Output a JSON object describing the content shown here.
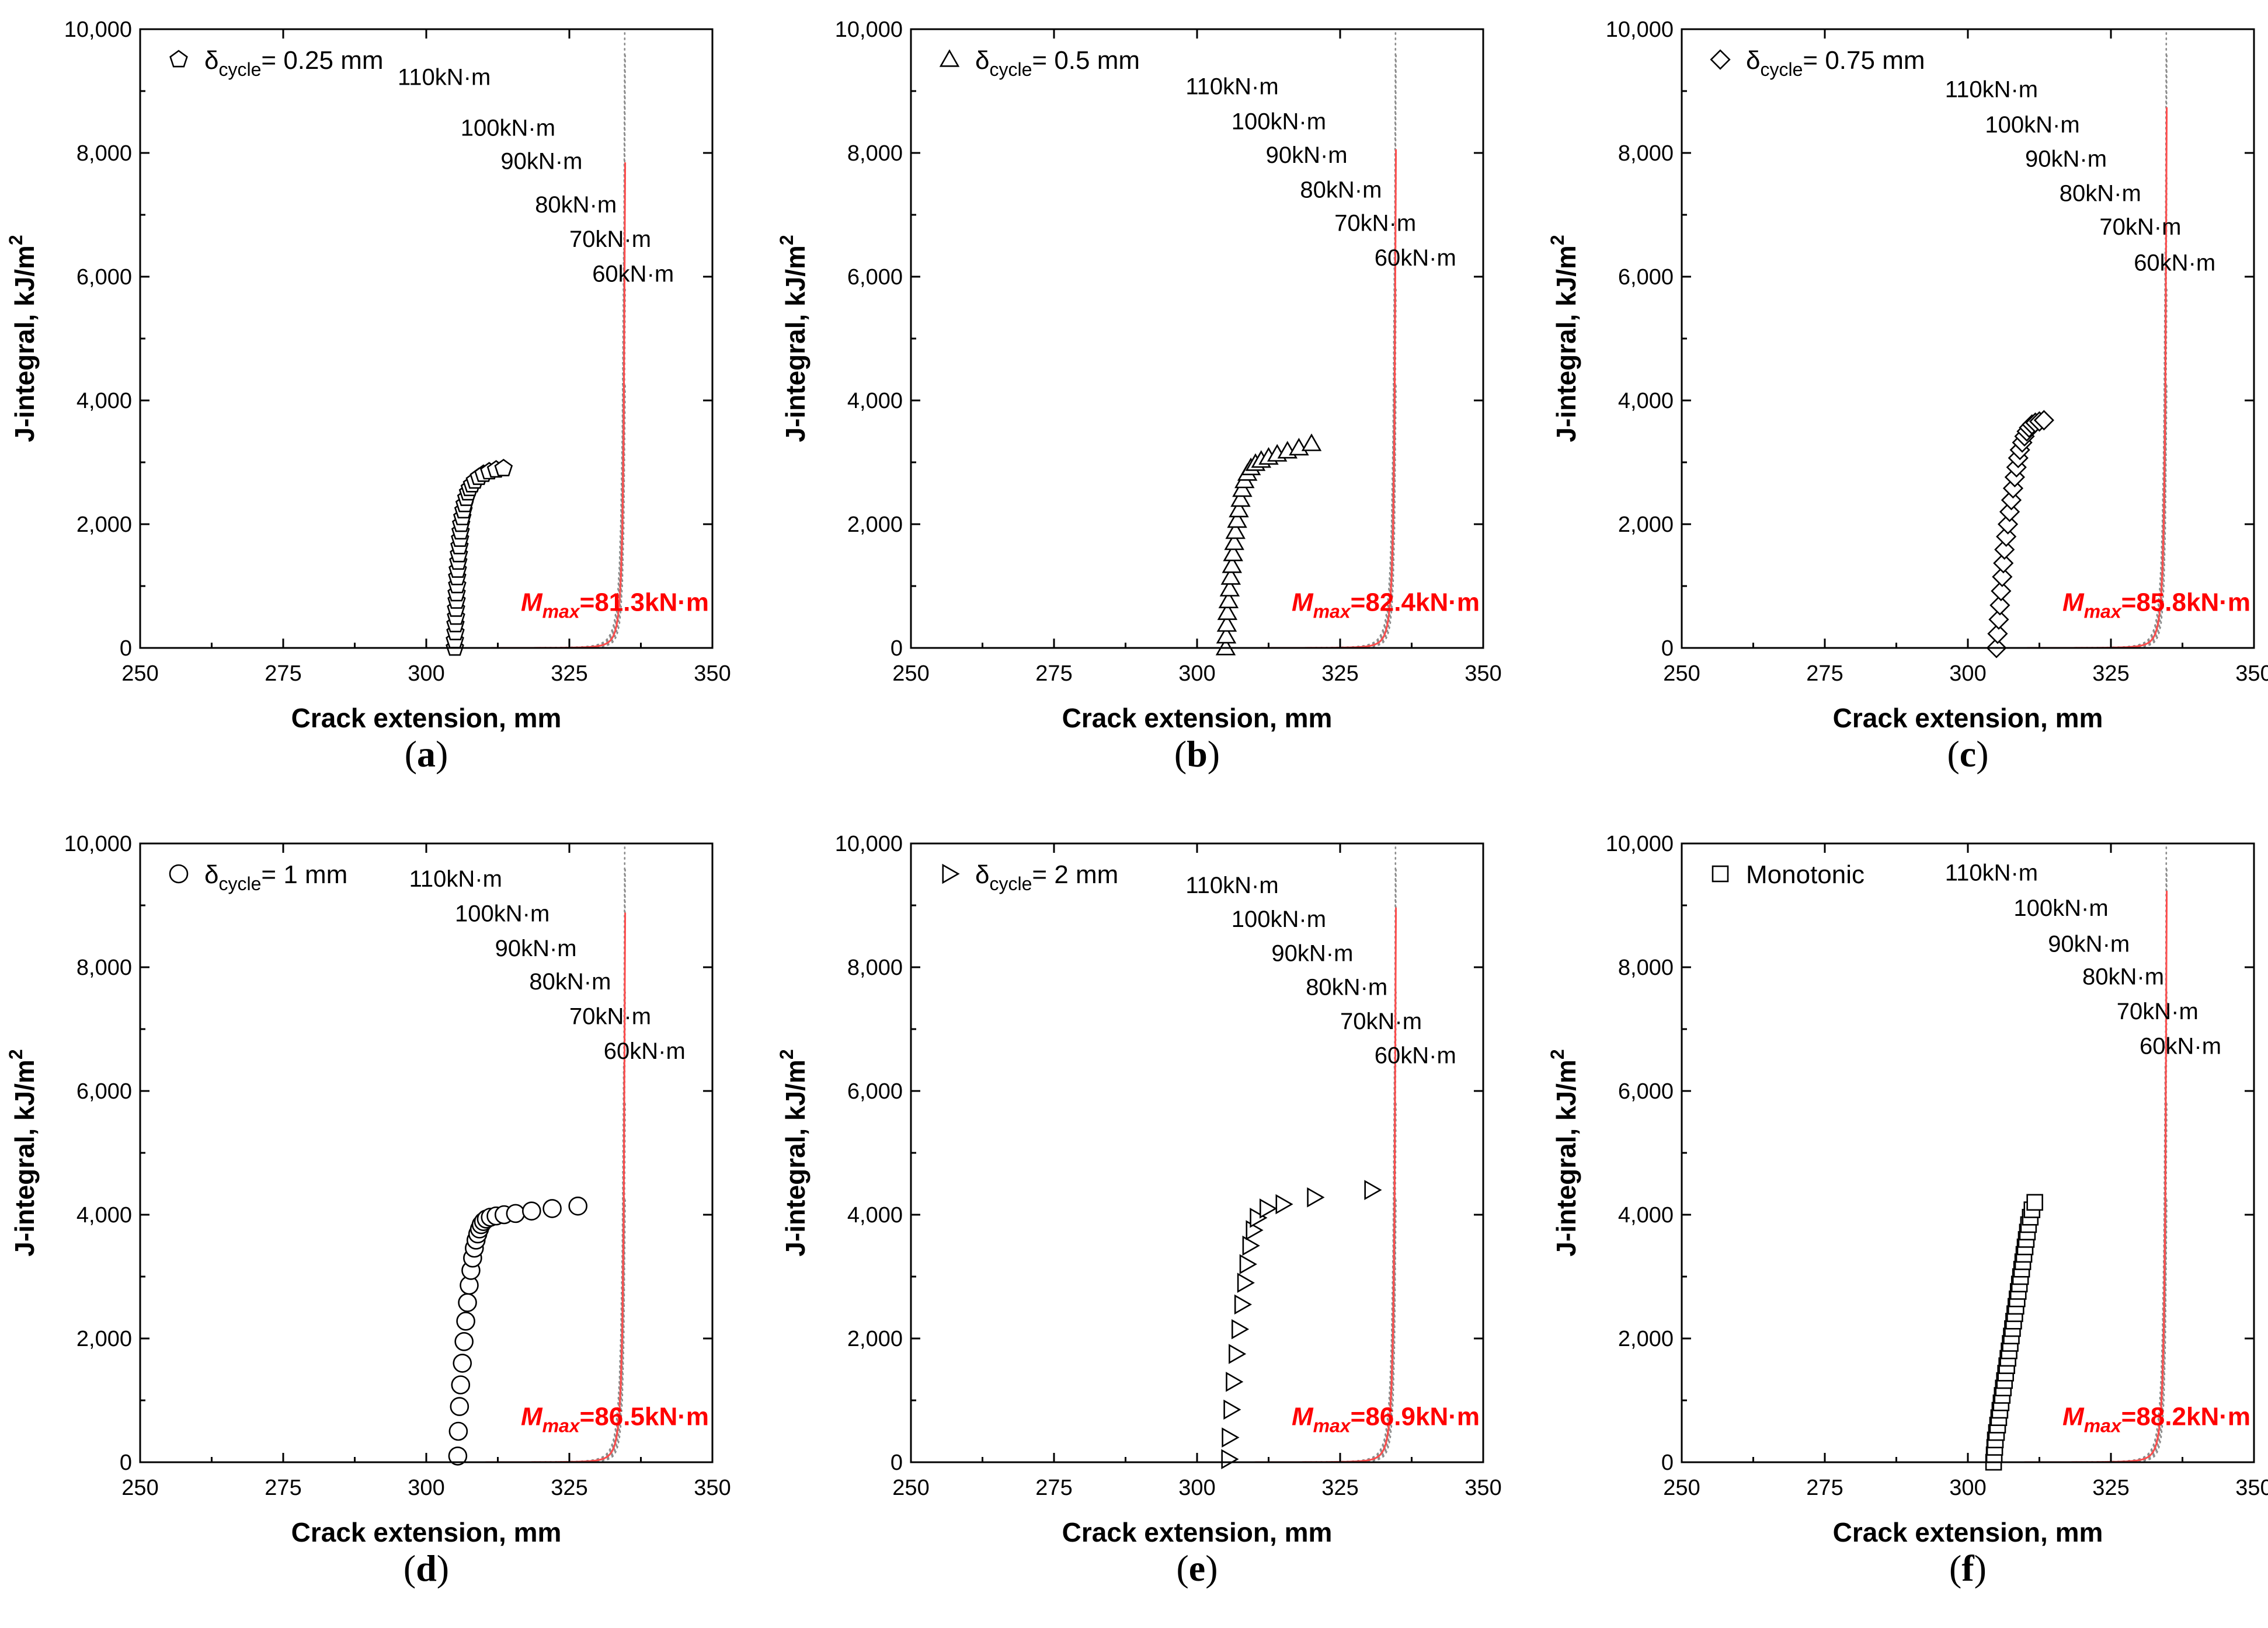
{
  "chart_data": [
    {
      "type": "scatter",
      "panel_label": "a",
      "xlabel": "Crack extension, mm",
      "ylabel_main": "J-integral, kJ/m",
      "ylabel_sup": "2",
      "xlim": [
        250,
        350
      ],
      "ylim": [
        0,
        10000
      ],
      "xticks": [
        "250",
        "275",
        "300",
        "325",
        "350"
      ],
      "yticks": [
        "0",
        "2,000",
        "4,000",
        "6,000",
        "8,000",
        "10,000"
      ],
      "legend": {
        "pre": "δ",
        "sub": "cycle",
        "post": "= 0.25 mm",
        "marker": "pentagon"
      },
      "moment_curves": [
        {
          "label": "110kN·m",
          "moment": 110,
          "label_at": [
            295,
            9100
          ]
        },
        {
          "label": "100kN·m",
          "moment": 100,
          "label_at": [
            306,
            8280
          ]
        },
        {
          "label": "90kN·m",
          "moment": 90,
          "label_at": [
            313,
            7740
          ]
        },
        {
          "label": "80kN·m",
          "moment": 80,
          "label_at": [
            319,
            7040
          ]
        },
        {
          "label": "70kN·m",
          "moment": 70,
          "label_at": [
            325,
            6480
          ]
        },
        {
          "label": "60kN·m",
          "moment": 60,
          "label_at": [
            329,
            5920
          ]
        }
      ],
      "mmax": {
        "symbol": "M",
        "sub": "max",
        "value": "=81.3kN·m",
        "moment": 81.3
      },
      "points": {
        "x": [
          305.0,
          305.0,
          305.1,
          305.1,
          305.2,
          305.2,
          305.3,
          305.3,
          305.4,
          305.4,
          305.5,
          305.6,
          305.7,
          305.8,
          305.9,
          306.0,
          306.1,
          306.3,
          306.5,
          306.7,
          307.0,
          307.3,
          307.6,
          308.0,
          308.5,
          309.2,
          310.0,
          311.0,
          312.2,
          313.5
        ],
        "y": [
          0,
          120,
          250,
          380,
          500,
          630,
          760,
          880,
          1010,
          1140,
          1260,
          1390,
          1510,
          1640,
          1760,
          1880,
          2000,
          2110,
          2220,
          2320,
          2420,
          2510,
          2580,
          2640,
          2700,
          2760,
          2810,
          2850,
          2880,
          2900
        ]
      }
    },
    {
      "type": "scatter",
      "panel_label": "b",
      "xlabel": "Crack extension, mm",
      "ylabel_main": "J-integral, kJ/m",
      "ylabel_sup": "2",
      "xlim": [
        250,
        350
      ],
      "ylim": [
        0,
        10000
      ],
      "xticks": [
        "250",
        "275",
        "300",
        "325",
        "350"
      ],
      "yticks": [
        "0",
        "2,000",
        "4,000",
        "6,000",
        "8,000",
        "10,000"
      ],
      "legend": {
        "pre": "δ",
        "sub": "cycle",
        "post": "= 0.5 mm",
        "marker": "triangle-up"
      },
      "moment_curves": [
        {
          "label": "110kN·m",
          "moment": 110,
          "label_at": [
            298,
            8950
          ]
        },
        {
          "label": "100kN·m",
          "moment": 100,
          "label_at": [
            306,
            8380
          ]
        },
        {
          "label": "90kN·m",
          "moment": 90,
          "label_at": [
            312,
            7840
          ]
        },
        {
          "label": "80kN·m",
          "moment": 80,
          "label_at": [
            318,
            7280
          ]
        },
        {
          "label": "70kN·m",
          "moment": 70,
          "label_at": [
            324,
            6740
          ]
        },
        {
          "label": "60kN·m",
          "moment": 60,
          "label_at": [
            331,
            6180
          ]
        }
      ],
      "mmax": {
        "symbol": "M",
        "sub": "max",
        "value": "=82.4kN·m",
        "moment": 82.4
      },
      "points": {
        "x": [
          305.0,
          305.1,
          305.2,
          305.3,
          305.5,
          305.7,
          305.9,
          306.1,
          306.3,
          306.5,
          306.7,
          307.0,
          307.3,
          307.6,
          307.9,
          308.3,
          308.8,
          309.4,
          310.2,
          311.2,
          312.5,
          314.0,
          315.8,
          317.8,
          320.0
        ],
        "y": [
          0,
          190,
          380,
          570,
          760,
          950,
          1140,
          1330,
          1520,
          1700,
          1880,
          2060,
          2230,
          2400,
          2560,
          2700,
          2820,
          2910,
          2980,
          3030,
          3080,
          3130,
          3180,
          3230,
          3300
        ]
      }
    },
    {
      "type": "scatter",
      "panel_label": "c",
      "xlabel": "Crack extension, mm",
      "ylabel_main": "J-integral, kJ/m",
      "ylabel_sup": "2",
      "xlim": [
        250,
        350
      ],
      "ylim": [
        0,
        10000
      ],
      "xticks": [
        "250",
        "275",
        "300",
        "325",
        "350"
      ],
      "yticks": [
        "0",
        "2,000",
        "4,000",
        "6,000",
        "8,000",
        "10,000"
      ],
      "legend": {
        "pre": "δ",
        "sub": "cycle",
        "post": "= 0.75 mm",
        "marker": "diamond"
      },
      "moment_curves": [
        {
          "label": "110kN·m",
          "moment": 110,
          "label_at": [
            296,
            8900
          ]
        },
        {
          "label": "100kN·m",
          "moment": 100,
          "label_at": [
            303,
            8330
          ]
        },
        {
          "label": "90kN·m",
          "moment": 90,
          "label_at": [
            310,
            7780
          ]
        },
        {
          "label": "80kN·m",
          "moment": 80,
          "label_at": [
            316,
            7220
          ]
        },
        {
          "label": "70kN·m",
          "moment": 70,
          "label_at": [
            323,
            6680
          ]
        },
        {
          "label": "60kN·m",
          "moment": 60,
          "label_at": [
            329,
            6100
          ]
        }
      ],
      "mmax": {
        "symbol": "M",
        "sub": "max",
        "value": "=85.8kN·m",
        "moment": 85.8
      },
      "points": {
        "x": [
          305.0,
          305.2,
          305.4,
          305.6,
          305.8,
          306.0,
          306.2,
          306.4,
          306.7,
          307.0,
          307.3,
          307.6,
          307.9,
          308.2,
          308.5,
          308.8,
          309.1,
          309.5,
          309.9,
          310.3,
          310.7,
          311.2,
          311.8,
          312.5,
          313.3
        ],
        "y": [
          0,
          230,
          460,
          690,
          920,
          1150,
          1370,
          1590,
          1800,
          2000,
          2200,
          2390,
          2580,
          2760,
          2920,
          3070,
          3200,
          3320,
          3420,
          3500,
          3560,
          3610,
          3640,
          3660,
          3680
        ]
      }
    },
    {
      "type": "scatter",
      "panel_label": "d",
      "xlabel": "Crack extension, mm",
      "ylabel_main": "J-integral, kJ/m",
      "ylabel_sup": "2",
      "xlim": [
        250,
        350
      ],
      "ylim": [
        0,
        10000
      ],
      "xticks": [
        "250",
        "275",
        "300",
        "325",
        "350"
      ],
      "yticks": [
        "0",
        "2,000",
        "4,000",
        "6,000",
        "8,000",
        "10,000"
      ],
      "legend": {
        "pre": "δ",
        "sub": "cycle",
        "post": "= 1 mm",
        "marker": "circle"
      },
      "moment_curves": [
        {
          "label": "110kN·m",
          "moment": 110,
          "label_at": [
            297,
            9300
          ]
        },
        {
          "label": "100kN·m",
          "moment": 100,
          "label_at": [
            305,
            8740
          ]
        },
        {
          "label": "90kN·m",
          "moment": 90,
          "label_at": [
            312,
            8180
          ]
        },
        {
          "label": "80kN·m",
          "moment": 80,
          "label_at": [
            318,
            7640
          ]
        },
        {
          "label": "70kN·m",
          "moment": 70,
          "label_at": [
            325,
            7080
          ]
        },
        {
          "label": "60kN·m",
          "moment": 60,
          "label_at": [
            331,
            6520
          ]
        }
      ],
      "mmax": {
        "symbol": "M",
        "sub": "max",
        "value": "=86.5kN·m",
        "moment": 86.5
      },
      "points": {
        "x": [
          305.5,
          305.6,
          305.8,
          306.0,
          306.3,
          306.6,
          306.9,
          307.2,
          307.5,
          307.8,
          308.1,
          308.4,
          308.7,
          309.0,
          309.3,
          309.6,
          310.0,
          310.5,
          311.2,
          312.2,
          313.6,
          315.6,
          318.4,
          322.0,
          326.5
        ],
        "y": [
          100,
          500,
          900,
          1250,
          1600,
          1950,
          2280,
          2580,
          2860,
          3100,
          3300,
          3460,
          3590,
          3690,
          3770,
          3840,
          3890,
          3930,
          3960,
          3980,
          4000,
          4020,
          4060,
          4100,
          4140
        ]
      }
    },
    {
      "type": "scatter",
      "panel_label": "e",
      "xlabel": "Crack extension, mm",
      "ylabel_main": "J-integral, kJ/m",
      "ylabel_sup": "2",
      "xlim": [
        250,
        350
      ],
      "ylim": [
        0,
        10000
      ],
      "xticks": [
        "250",
        "275",
        "300",
        "325",
        "350"
      ],
      "yticks": [
        "0",
        "2,000",
        "4,000",
        "6,000",
        "8,000",
        "10,000"
      ],
      "legend": {
        "pre": "δ",
        "sub": "cycle",
        "post": "= 2 mm",
        "marker": "triangle-right"
      },
      "moment_curves": [
        {
          "label": "110kN·m",
          "moment": 110,
          "label_at": [
            298,
            9200
          ]
        },
        {
          "label": "100kN·m",
          "moment": 100,
          "label_at": [
            306,
            8650
          ]
        },
        {
          "label": "90kN·m",
          "moment": 90,
          "label_at": [
            313,
            8100
          ]
        },
        {
          "label": "80kN·m",
          "moment": 80,
          "label_at": [
            319,
            7550
          ]
        },
        {
          "label": "70kN·m",
          "moment": 70,
          "label_at": [
            325,
            7000
          ]
        },
        {
          "label": "60kN·m",
          "moment": 60,
          "label_at": [
            331,
            6450
          ]
        }
      ],
      "mmax": {
        "symbol": "M",
        "sub": "max",
        "value": "=86.9kN·m",
        "moment": 86.9
      },
      "points": {
        "x": [
          305.5,
          305.6,
          305.9,
          306.3,
          306.8,
          307.3,
          307.8,
          308.3,
          308.7,
          309.2,
          309.8,
          310.5,
          312.2,
          315.0,
          320.5,
          330.5
        ],
        "y": [
          50,
          400,
          850,
          1300,
          1750,
          2150,
          2550,
          2900,
          3200,
          3500,
          3750,
          3950,
          4100,
          4170,
          4280,
          4400
        ]
      }
    },
    {
      "type": "scatter",
      "panel_label": "f",
      "xlabel": "Crack extension, mm",
      "ylabel_main": "J-integral, kJ/m",
      "ylabel_sup": "2",
      "xlim": [
        250,
        350
      ],
      "ylim": [
        0,
        10000
      ],
      "xticks": [
        "250",
        "275",
        "300",
        "325",
        "350"
      ],
      "yticks": [
        "0",
        "2,000",
        "4,000",
        "6,000",
        "8,000",
        "10,000"
      ],
      "legend": {
        "pre": "",
        "sub": "",
        "post": "Monotonic",
        "marker": "square"
      },
      "moment_curves": [
        {
          "label": "110kN·m",
          "moment": 110,
          "label_at": [
            296,
            9400
          ]
        },
        {
          "label": "100kN·m",
          "moment": 100,
          "label_at": [
            308,
            8830
          ]
        },
        {
          "label": "90kN·m",
          "moment": 90,
          "label_at": [
            314,
            8250
          ]
        },
        {
          "label": "80kN·m",
          "moment": 80,
          "label_at": [
            320,
            7720
          ]
        },
        {
          "label": "70kN·m",
          "moment": 70,
          "label_at": [
            326,
            7160
          ]
        },
        {
          "label": "60kN·m",
          "moment": 60,
          "label_at": [
            330,
            6600
          ]
        }
      ],
      "mmax": {
        "symbol": "M",
        "sub": "max",
        "value": "=88.2kN·m",
        "moment": 88.2
      },
      "points": {
        "x": [
          304.5,
          304.6,
          304.7,
          304.8,
          305.0,
          305.2,
          305.4,
          305.6,
          305.8,
          306.0,
          306.2,
          306.4,
          306.6,
          306.8,
          307.0,
          307.2,
          307.4,
          307.6,
          307.8,
          308.0,
          308.2,
          308.4,
          308.6,
          308.8,
          309.0,
          309.2,
          309.4,
          309.6,
          309.8,
          310.0,
          310.2,
          310.4,
          310.6,
          310.9,
          311.2,
          311.7
        ],
        "y": [
          0,
          120,
          240,
          360,
          480,
          600,
          720,
          840,
          960,
          1080,
          1200,
          1320,
          1440,
          1560,
          1680,
          1800,
          1920,
          2040,
          2160,
          2280,
          2400,
          2520,
          2640,
          2760,
          2880,
          3000,
          3120,
          3240,
          3360,
          3480,
          3600,
          3720,
          3840,
          3960,
          4080,
          4200
        ]
      }
    }
  ]
}
